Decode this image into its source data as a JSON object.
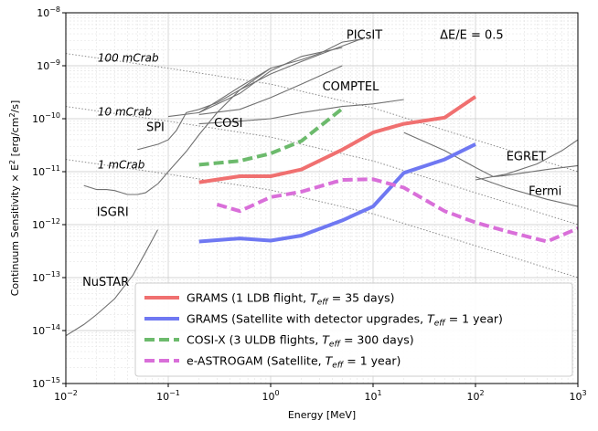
{
  "chart_data": {
    "type": "line",
    "title": "",
    "xlabel": "Energy [MeV]",
    "ylabel_main": "Continuum Sensitivity × E",
    "ylabel_unit": " [erg/cm",
    "ylabel_tail": "/s]",
    "xscale": "log",
    "yscale": "log",
    "xlim": [
      0.01,
      1000
    ],
    "ylim": [
      1e-15,
      1e-08
    ],
    "grid": true,
    "xticks": [
      {
        "v": 0.01,
        "base": "10",
        "exp": "−2"
      },
      {
        "v": 0.1,
        "base": "10",
        "exp": "−1"
      },
      {
        "v": 1,
        "base": "10",
        "exp": "0"
      },
      {
        "v": 10,
        "base": "10",
        "exp": "1"
      },
      {
        "v": 100,
        "base": "10",
        "exp": "2"
      },
      {
        "v": 1000,
        "base": "10",
        "exp": "3"
      }
    ],
    "yticks": [
      {
        "v": 1e-15,
        "base": "10",
        "exp": "−15"
      },
      {
        "v": 1e-14,
        "base": "10",
        "exp": "−14"
      },
      {
        "v": 1e-13,
        "base": "10",
        "exp": "−13"
      },
      {
        "v": 1e-12,
        "base": "10",
        "exp": "−12"
      },
      {
        "v": 1e-11,
        "base": "10",
        "exp": "−11"
      },
      {
        "v": 1e-10,
        "base": "10",
        "exp": "−10"
      },
      {
        "v": 1e-09,
        "base": "10",
        "exp": "−9"
      },
      {
        "v": 1e-08,
        "base": "10",
        "exp": "−8"
      }
    ],
    "crab_lines": [
      {
        "label": "100 mCrab",
        "x": [
          0.01,
          0.1,
          1,
          10,
          100,
          1000
        ],
        "y": [
          1.7e-09,
          9e-10,
          4.5e-10,
          1.6e-10,
          4e-11,
          1e-11
        ]
      },
      {
        "label": "10 mCrab",
        "x": [
          0.01,
          0.1,
          1,
          10,
          100,
          1000
        ],
        "y": [
          1.7e-10,
          9e-11,
          4.5e-11,
          1.6e-11,
          4e-12,
          1e-12
        ]
      },
      {
        "label": "1 mCrab",
        "x": [
          0.01,
          0.1,
          1,
          10,
          100,
          1000
        ],
        "y": [
          1.7e-11,
          9e-12,
          4.5e-12,
          1.6e-12,
          4e-13,
          1e-13
        ]
      }
    ],
    "instruments": [
      {
        "name": "NuSTAR",
        "x": [
          0.01,
          0.015,
          0.02,
          0.03,
          0.045,
          0.06,
          0.079
        ],
        "y": [
          8e-15,
          1.3e-14,
          2e-14,
          4e-14,
          1.1e-13,
          3e-13,
          8e-13
        ]
      },
      {
        "name": "ISGRI",
        "x": [
          0.015,
          0.02,
          0.025,
          0.03,
          0.04,
          0.05,
          0.06,
          0.08,
          0.1,
          0.15,
          0.2,
          0.3,
          0.5,
          1
        ],
        "y": [
          5.5e-12,
          4.6e-12,
          4.6e-12,
          4.4e-12,
          3.7e-12,
          3.7e-12,
          4e-12,
          6e-12,
          1e-11,
          2.4e-11,
          5e-11,
          1.3e-10,
          3.5e-10,
          9e-10
        ]
      },
      {
        "name": "SPI",
        "x": [
          0.05,
          0.08,
          0.1,
          0.12,
          0.15,
          0.2,
          0.3,
          0.5,
          1,
          2,
          4,
          8
        ],
        "y": [
          2.6e-11,
          3.3e-11,
          4e-11,
          6e-11,
          1.3e-10,
          1.5e-10,
          2e-10,
          3.5e-10,
          7e-10,
          1.2e-09,
          2e-09,
          3.3e-09
        ]
      },
      {
        "name": "SPI-b",
        "x": [
          0.1,
          0.2,
          0.5,
          1,
          2,
          5
        ],
        "y": [
          1.1e-10,
          1.3e-10,
          3e-10,
          8e-10,
          1.5e-09,
          2.2e-09
        ]
      },
      {
        "name": "COSI",
        "x": [
          0.2,
          0.5,
          1,
          2,
          5
        ],
        "y": [
          1.2e-10,
          1.5e-10,
          2.5e-10,
          4.5e-10,
          1e-09
        ]
      },
      {
        "name": "PICsIT",
        "x": [
          0.2,
          0.5,
          1,
          2,
          3,
          5,
          8
        ],
        "y": [
          1.3e-10,
          4e-10,
          9e-10,
          1.3e-09,
          1.7e-09,
          2.8e-09,
          3.2e-09
        ]
      },
      {
        "name": "COMPTEL",
        "x": [
          0.2,
          0.5,
          1,
          2,
          5,
          10,
          20
        ],
        "y": [
          8e-11,
          9e-11,
          1e-10,
          1.3e-10,
          1.7e-10,
          1.9e-10,
          2.3e-10
        ]
      },
      {
        "name": "EGRET",
        "x": [
          20,
          50,
          100,
          150,
          200,
          500,
          1000
        ],
        "y": [
          5.5e-11,
          2.5e-11,
          1.2e-11,
          8e-12,
          8.5e-12,
          1.1e-11,
          1.3e-11
        ]
      },
      {
        "name": "Fermi",
        "x": [
          100,
          200,
          500,
          1000
        ],
        "y": [
          8e-12,
          5e-12,
          3e-12,
          2.2e-12
        ]
      },
      {
        "name": "Fermi-b",
        "x": [
          100,
          200,
          400,
          700,
          1000
        ],
        "y": [
          7e-12,
          9e-12,
          1.4e-11,
          2.5e-11,
          4e-11
        ]
      }
    ],
    "series": [
      {
        "name": "GRAMS (1 LDB flight, T_eff = 35 days)",
        "color": "#f07070",
        "dash": "solid",
        "x": [
          0.2,
          0.5,
          1,
          2,
          5,
          10,
          20,
          50,
          100
        ],
        "y": [
          6.3e-12,
          8.2e-12,
          8.2e-12,
          1.1e-11,
          2.6e-11,
          5.5e-11,
          8e-11,
          1.05e-10,
          2.6e-10
        ]
      },
      {
        "name": "GRAMS (Satellite with detector upgrades, T_eff = 1 year)",
        "color": "#6f78f2",
        "dash": "solid",
        "x": [
          0.2,
          0.5,
          1,
          2,
          5,
          10,
          20,
          50,
          100
        ],
        "y": [
          4.8e-13,
          5.5e-13,
          5e-13,
          6.2e-13,
          1.2e-12,
          2.2e-12,
          9.5e-12,
          1.7e-11,
          3.3e-11
        ]
      },
      {
        "name": "COSI-X (3 ULDB flights, T_eff = 300 days)",
        "color": "#6cba6c",
        "dash": "dashed",
        "x": [
          0.2,
          0.5,
          1,
          2,
          5
        ],
        "y": [
          1.35e-11,
          1.6e-11,
          2.2e-11,
          3.8e-11,
          1.55e-10
        ]
      },
      {
        "name": "e-ASTROGAM (Satellite, T_eff = 1 year)",
        "color": "#d96fd9",
        "dash": "dashed",
        "x": [
          0.3,
          0.5,
          1,
          2,
          5,
          10,
          20,
          50,
          100,
          200,
          500,
          1000
        ],
        "y": [
          2.4e-12,
          1.8e-12,
          3.3e-12,
          4.2e-12,
          7e-12,
          7.2e-12,
          5e-12,
          1.8e-12,
          1.1e-12,
          7.5e-13,
          4.8e-13,
          8.5e-13
        ]
      }
    ],
    "legend": [
      {
        "main": "GRAMS (1 LDB flight, ",
        "sym": "T",
        "sub": "eff",
        "tail": " = 35 days)"
      },
      {
        "main": "GRAMS (Satellite with detector upgrades, ",
        "sym": "T",
        "sub": "eff",
        "tail": " = 1 year)"
      },
      {
        "main": "COSI-X (3 ULDB flights, ",
        "sym": "T",
        "sub": "eff",
        "tail": " = 300 days)"
      },
      {
        "main": "e-ASTROGAM (Satellite, ",
        "sym": "T",
        "sub": "eff",
        "tail": " = 1 year)"
      }
    ],
    "legend_position": "bottom-right",
    "annotations": [
      {
        "text": "PICsIT",
        "x": 5.5,
        "y": 3.2e-09
      },
      {
        "text": "ΔE/E = 0.5",
        "x": 45,
        "y": 3.2e-09
      },
      {
        "text": "COMPTEL",
        "x": 3.2,
        "y": 3.4e-10
      },
      {
        "text": "COSI",
        "x": 0.28,
        "y": 7e-11
      },
      {
        "text": "SPI",
        "x": 0.061,
        "y": 5.8e-11
      },
      {
        "text": "EGRET",
        "x": 200,
        "y": 1.65e-11
      },
      {
        "text": "Fermi",
        "x": 330,
        "y": 3.6e-12
      },
      {
        "text": "ISGRI",
        "x": 0.02,
        "y": 1.45e-12
      },
      {
        "text": "NuSTAR",
        "x": 0.0145,
        "y": 7e-14
      }
    ],
    "crab_labels": [
      {
        "text": "100 mCrab",
        "x": 0.0205,
        "y": 1.2e-09
      },
      {
        "text": "10 mCrab",
        "x": 0.0205,
        "y": 1.15e-10
      },
      {
        "text": "1 mCrab",
        "x": 0.0205,
        "y": 1.15e-11
      }
    ]
  }
}
